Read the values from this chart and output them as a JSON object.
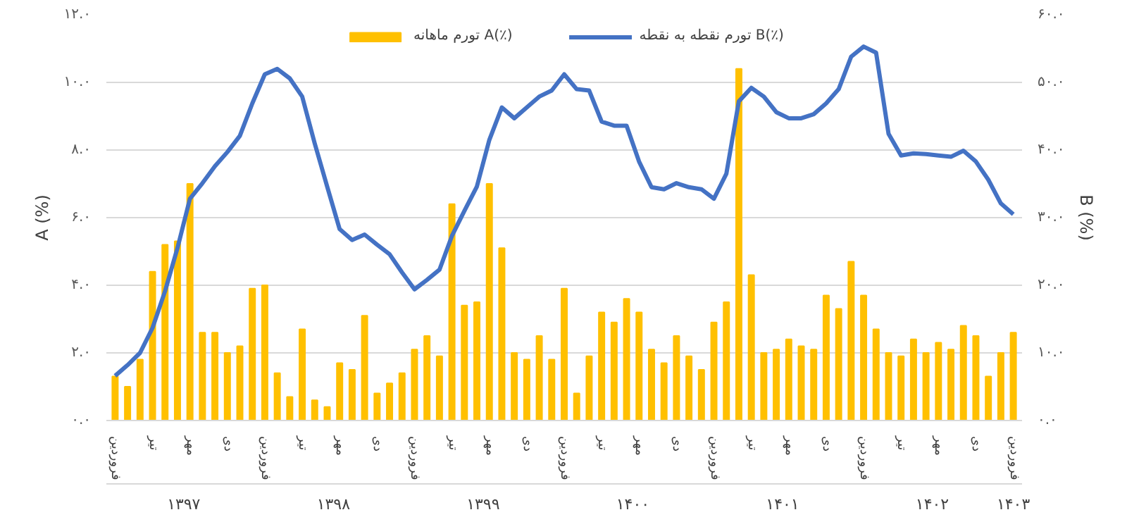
{
  "chart_data": {
    "type": "bar",
    "ylabel": "A (%)",
    "y2label": "B (%)",
    "categories": [
      "فروردین",
      null,
      null,
      "تیر",
      null,
      null,
      "مهر",
      null,
      null,
      "دی",
      null,
      null,
      "فروردین",
      null,
      null,
      "تیر",
      null,
      null,
      "مهر",
      null,
      null,
      "دی",
      null,
      null,
      "فروردین",
      null,
      null,
      "تیر",
      null,
      null,
      "مهر",
      null,
      null,
      "دی",
      null,
      null,
      "فروردین",
      null,
      null,
      "تیر",
      null,
      null,
      "مهر",
      null,
      null,
      "دی",
      null,
      null,
      "فروردین",
      null,
      null,
      "تیر",
      null,
      null,
      "مهر",
      null,
      null,
      "دی",
      null,
      null,
      "فروردین",
      null,
      null,
      "تیر",
      null,
      null,
      "مهر",
      null,
      null,
      "دی",
      null,
      null,
      "فروردین"
    ],
    "annotations": [
      "۱۳۹۷",
      "۱۳۹۸",
      "۱۳۹۹",
      "۱۴۰۰",
      "۱۴۰۱",
      "۱۴۰۲",
      "۱۴۰۳"
    ],
    "series": [
      {
        "name": "تورم ماهانه A(٪)",
        "color": "#ffc000",
        "values": [
          1.3,
          1.0,
          1.8,
          4.4,
          5.2,
          5.3,
          7.0,
          2.6,
          2.6,
          2.0,
          2.2,
          3.9,
          4.0,
          1.4,
          0.7,
          2.7,
          0.6,
          0.4,
          1.7,
          1.5,
          3.1,
          0.8,
          1.1,
          1.4,
          2.1,
          2.5,
          1.9,
          6.4,
          3.4,
          3.5,
          7.0,
          5.1,
          2.0,
          1.8,
          2.5,
          1.8,
          3.9,
          0.8,
          1.9,
          3.2,
          2.9,
          3.6,
          3.2,
          2.1,
          1.7,
          2.5,
          1.9,
          1.5,
          2.9,
          3.5,
          10.4,
          4.3,
          2.0,
          2.1,
          2.4,
          2.2,
          2.1,
          3.7,
          3.3,
          4.7,
          3.7,
          2.7,
          2.0,
          1.9,
          2.4,
          2.0,
          2.3,
          2.1,
          2.8,
          2.5,
          1.3,
          2.0,
          2.6
        ]
      },
      {
        "name": "تورم نقطه به نقطه B(٪)",
        "type": "line",
        "axis": "y2",
        "color": "#4472c4",
        "values": [
          6.6,
          8.2,
          10.0,
          13.7,
          19.1,
          25.5,
          32.8,
          35.1,
          37.6,
          39.7,
          42.1,
          46.9,
          51.2,
          52.0,
          50.6,
          47.9,
          41.0,
          34.6,
          28.3,
          26.7,
          27.5,
          26.0,
          24.6,
          21.9,
          19.4,
          20.8,
          22.3,
          27.3,
          31.0,
          34.6,
          41.5,
          46.3,
          44.7,
          46.3,
          47.9,
          48.8,
          51.2,
          49.0,
          48.8,
          44.2,
          43.6,
          43.6,
          38.3,
          34.5,
          34.2,
          35.1,
          34.5,
          34.2,
          32.8,
          36.5,
          47.2,
          49.2,
          47.9,
          45.6,
          44.7,
          44.7,
          45.3,
          46.9,
          49.0,
          53.8,
          55.3,
          54.4,
          42.4,
          39.2,
          39.5,
          39.4,
          39.2,
          39.0,
          39.9,
          38.3,
          35.6,
          32.1,
          30.5
        ]
      }
    ],
    "ylim": [
      0,
      12
    ],
    "yticks": [
      {
        "value": 0,
        "label": "۰.۰"
      },
      {
        "value": 2,
        "label": "۲.۰"
      },
      {
        "value": 4,
        "label": "۴.۰"
      },
      {
        "value": 6,
        "label": "۶.۰"
      },
      {
        "value": 8,
        "label": "۸.۰"
      },
      {
        "value": 10,
        "label": "۱۰.۰"
      },
      {
        "value": 12,
        "label": "۱۲.۰"
      }
    ],
    "y2lim": [
      0,
      60
    ],
    "y2ticks": [
      {
        "value": 0,
        "label": "۰.۰"
      },
      {
        "value": 10,
        "label": "۱۰.۰"
      },
      {
        "value": 20,
        "label": "۲۰.۰"
      },
      {
        "value": 30,
        "label": "۳۰.۰"
      },
      {
        "value": 40,
        "label": "۴۰.۰"
      },
      {
        "value": 50,
        "label": "۵۰.۰"
      },
      {
        "value": 60,
        "label": "۶۰.۰"
      }
    ],
    "grid": "y",
    "legend": "top",
    "marker": "none",
    "line_style": "solid"
  }
}
